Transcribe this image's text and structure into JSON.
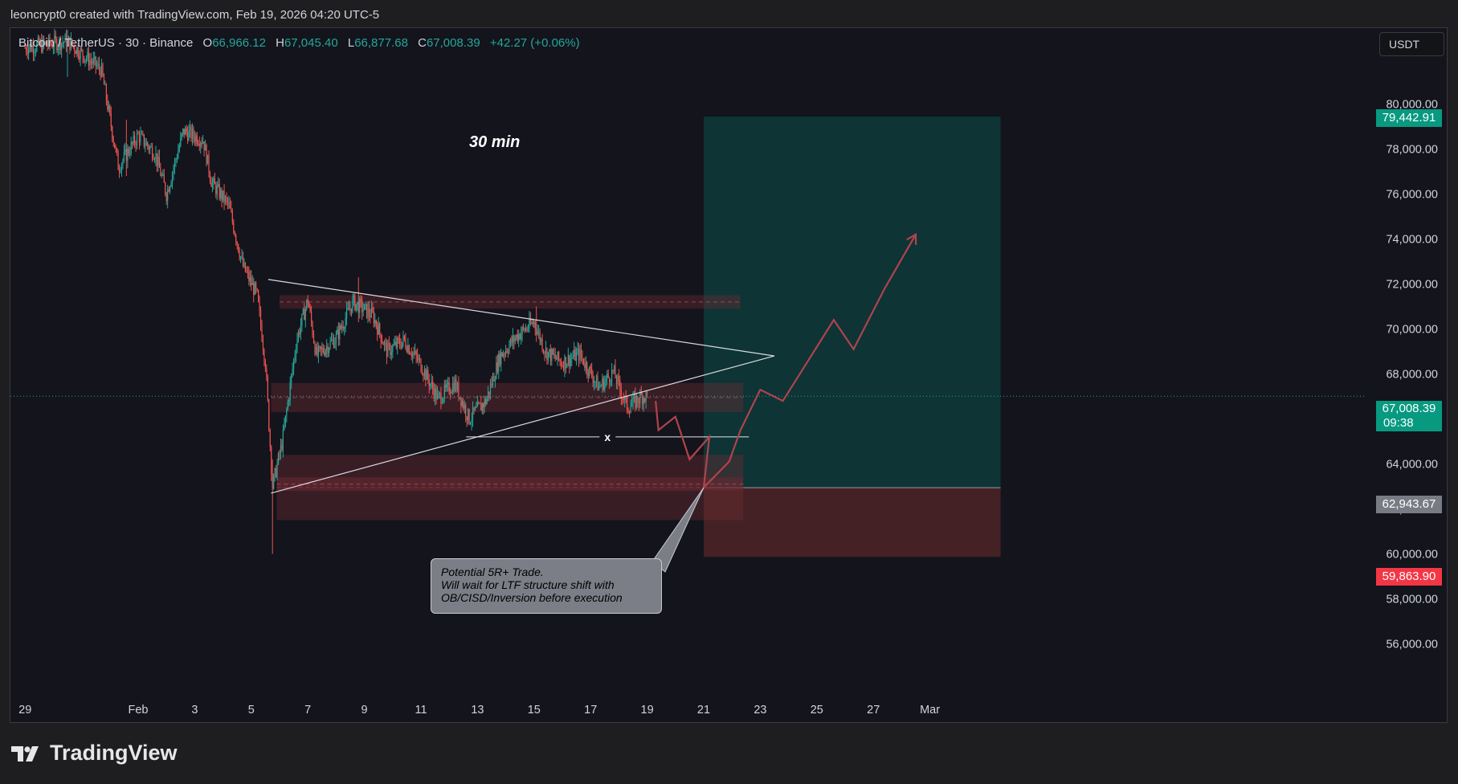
{
  "attribution": "leoncrypt0 created with TradingView.com, Feb 19, 2026 04:20 UTC-5",
  "symbol": {
    "name": "Bitcoin / TetherUS · 30 · Binance",
    "open_label": "O",
    "open": "66,966.12",
    "high_label": "H",
    "high": "67,045.40",
    "low_label": "L",
    "low": "66,877.68",
    "close_label": "C",
    "close": "67,008.39",
    "change": "+42.27 (+0.06%)"
  },
  "currency_button": "USDT",
  "timeframe_note": "30 min",
  "trade_note": [
    "Potential 5R+ Trade.",
    "Will wait for LTF structure shift with",
    "OB/CISD/Inversion before execution"
  ],
  "x_marker": "x",
  "price_tags": {
    "target": "79,442.91",
    "current": "67,008.39",
    "countdown": "09:38",
    "entry": "62,943.67",
    "stop": "59,863.90"
  },
  "colors": {
    "up": "#26a69a",
    "down": "#ef5350",
    "target_zone": "#0e3a3a",
    "stop_zone": "#4a2226",
    "entry_tag": "#797b84",
    "projection": "#b0434d"
  },
  "logo": {
    "icon": "tradingview-logo-icon",
    "text": "TradingView"
  },
  "chart_data": {
    "type": "candlestick",
    "title": "Bitcoin / TetherUS · 30 · Binance",
    "ylim": [
      54000,
      82000
    ],
    "y_ticks": [
      56000,
      58000,
      60000,
      62000,
      64000,
      66000,
      68000,
      70000,
      72000,
      74000,
      76000,
      78000,
      80000
    ],
    "y_tick_labels": [
      "56,000.00",
      "58,000.00",
      "60,000.00",
      "62,000.00",
      "64,000.00",
      "66,000.00",
      "68,000.00",
      "70,000.00",
      "72,000.00",
      "74,000.00",
      "76,000.00",
      "78,000.00",
      "80,000.00"
    ],
    "x_tick_labels": [
      "29",
      "Feb",
      "3",
      "5",
      "7",
      "9",
      "11",
      "13",
      "15",
      "17",
      "19",
      "21",
      "23",
      "25",
      "27",
      "Mar"
    ],
    "x_tick_days": [
      -3,
      1,
      3,
      5,
      7,
      9,
      11,
      13,
      15,
      17,
      19,
      21,
      23,
      25,
      27,
      29
    ],
    "price_path": [
      {
        "day": -3.0,
        "price": 82500
      },
      {
        "day": -1.5,
        "price": 82800
      },
      {
        "day": -0.3,
        "price": 81500
      },
      {
        "day": 0.3,
        "price": 77200
      },
      {
        "day": 1.0,
        "price": 78600
      },
      {
        "day": 1.6,
        "price": 77800
      },
      {
        "day": 2.0,
        "price": 76000
      },
      {
        "day": 2.6,
        "price": 78800
      },
      {
        "day": 3.3,
        "price": 78400
      },
      {
        "day": 3.6,
        "price": 76500
      },
      {
        "day": 4.2,
        "price": 75500
      },
      {
        "day": 4.7,
        "price": 72800
      },
      {
        "day": 5.2,
        "price": 71500
      },
      {
        "day": 5.5,
        "price": 68500
      },
      {
        "day": 5.75,
        "price": 63000
      },
      {
        "day": 6.1,
        "price": 65000
      },
      {
        "day": 6.6,
        "price": 69500
      },
      {
        "day": 7.0,
        "price": 71300
      },
      {
        "day": 7.3,
        "price": 68800
      },
      {
        "day": 8.0,
        "price": 69600
      },
      {
        "day": 8.6,
        "price": 71200
      },
      {
        "day": 9.3,
        "price": 70600
      },
      {
        "day": 9.8,
        "price": 69000
      },
      {
        "day": 10.4,
        "price": 69500
      },
      {
        "day": 11.0,
        "price": 68400
      },
      {
        "day": 11.6,
        "price": 66900
      },
      {
        "day": 12.2,
        "price": 67600
      },
      {
        "day": 12.7,
        "price": 66000
      },
      {
        "day": 13.3,
        "price": 66800
      },
      {
        "day": 13.8,
        "price": 68800
      },
      {
        "day": 14.4,
        "price": 69700
      },
      {
        "day": 15.0,
        "price": 70300
      },
      {
        "day": 15.4,
        "price": 69000
      },
      {
        "day": 16.0,
        "price": 68500
      },
      {
        "day": 16.6,
        "price": 68900
      },
      {
        "day": 17.3,
        "price": 67400
      },
      {
        "day": 17.8,
        "price": 68100
      },
      {
        "day": 18.3,
        "price": 66500
      },
      {
        "day": 18.8,
        "price": 67000
      },
      {
        "day": 19.0,
        "price": 67008.39
      }
    ],
    "wick_extremes": [
      {
        "day": -1.5,
        "high": 83300,
        "low": 81200
      },
      {
        "day": 0.6,
        "high": 79300,
        "low": 76800
      },
      {
        "day": 5.75,
        "high": 64200,
        "low": 60000
      },
      {
        "day": 8.8,
        "high": 72300,
        "low": 70300
      },
      {
        "day": 15.1,
        "high": 71000,
        "low": 69600
      }
    ],
    "last_price": 67008.39,
    "position": {
      "type": "long",
      "start_day": 21.0,
      "end_day": 31.5,
      "entry": 62943.67,
      "target": 79442.91,
      "stop": 59863.9
    },
    "triangle": {
      "upper": [
        {
          "day": 5.6,
          "price": 72200
        },
        {
          "day": 23.5,
          "price": 68800
        }
      ],
      "lower": [
        {
          "day": 5.7,
          "price": 62700
        },
        {
          "day": 23.5,
          "price": 68800
        }
      ]
    },
    "supply_demand_zones": [
      {
        "from_day": 6.0,
        "to_day": 22.3,
        "low": 70900,
        "high": 71500
      },
      {
        "from_day": 5.7,
        "to_day": 22.4,
        "low": 66300,
        "high": 67600
      },
      {
        "from_day": 5.9,
        "to_day": 22.4,
        "low": 61500,
        "high": 64400
      },
      {
        "from_day": 5.9,
        "to_day": 22.4,
        "low": 62800,
        "high": 63400
      }
    ],
    "x_level": {
      "from_day": 12.6,
      "to_day": 22.6,
      "price": 65200
    },
    "projected_path": [
      {
        "day": 19.3,
        "price": 66800
      },
      {
        "day": 19.4,
        "price": 65500
      },
      {
        "day": 20.0,
        "price": 66100
      },
      {
        "day": 20.5,
        "price": 64200
      },
      {
        "day": 21.2,
        "price": 65200
      },
      {
        "day": 21.0,
        "price": 62950
      },
      {
        "day": 21.9,
        "price": 64100
      },
      {
        "day": 22.3,
        "price": 65500
      },
      {
        "day": 23.0,
        "price": 67300
      },
      {
        "day": 23.8,
        "price": 66800
      },
      {
        "day": 24.7,
        "price": 68600
      },
      {
        "day": 25.6,
        "price": 70400
      },
      {
        "day": 26.3,
        "price": 69100
      },
      {
        "day": 27.4,
        "price": 71800
      },
      {
        "day": 28.5,
        "price": 74200
      }
    ]
  }
}
